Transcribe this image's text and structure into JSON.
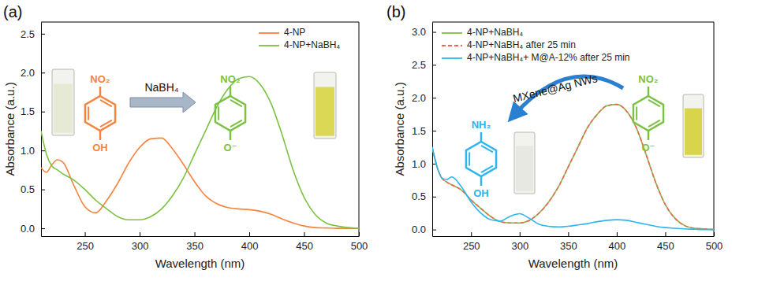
{
  "chart_data": [
    {
      "type": "line",
      "title": "(a)",
      "x_label": "Wavelength (nm)",
      "y_label": "Absorbance (a.u.)",
      "x": [
        210,
        215,
        220,
        225,
        230,
        240,
        250,
        260,
        270,
        280,
        290,
        300,
        310,
        320,
        330,
        340,
        350,
        360,
        370,
        380,
        390,
        400,
        410,
        420,
        430,
        440,
        450,
        460,
        470,
        480,
        490,
        500
      ],
      "xlim": [
        210,
        500
      ],
      "xticks": [
        250,
        300,
        350,
        400,
        450,
        500
      ],
      "ylim": [
        -0.1,
        2.65
      ],
      "yticks": [
        {
          "value": 0,
          "label": "0.0"
        },
        0.5,
        {
          "value": 1,
          "label": "1.0"
        },
        1.5,
        {
          "value": 2,
          "label": "2.0"
        },
        2.5
      ],
      "legend": "upper right",
      "series": [
        {
          "name": "4-NP",
          "color": "#f5843f",
          "line_style": "solid",
          "values": [
            0.78,
            0.72,
            0.82,
            0.88,
            0.85,
            0.55,
            0.28,
            0.2,
            0.36,
            0.58,
            0.84,
            1.04,
            1.15,
            1.16,
            1.02,
            0.82,
            0.6,
            0.42,
            0.32,
            0.27,
            0.25,
            0.24,
            0.22,
            0.18,
            0.12,
            0.07,
            0.03,
            0.01,
            0.005,
            0,
            0,
            0
          ]
        },
        {
          "name": "4-NP+NaBH₄",
          "color": "#7cc242",
          "line_style": "solid",
          "values": [
            1.25,
            0.95,
            0.8,
            0.75,
            0.7,
            0.62,
            0.5,
            0.36,
            0.25,
            0.15,
            0.11,
            0.11,
            0.15,
            0.25,
            0.42,
            0.65,
            0.95,
            1.25,
            1.55,
            1.78,
            1.92,
            1.95,
            1.85,
            1.6,
            1.2,
            0.75,
            0.4,
            0.18,
            0.07,
            0.03,
            0.01,
            0
          ]
        }
      ],
      "annotations": [
        {
          "text": "NO₂"
        },
        {
          "text": "OH"
        },
        {
          "text": "NaBH₄"
        },
        {
          "text": "NO₂"
        },
        {
          "text": "O⁻"
        }
      ]
    },
    {
      "type": "line",
      "title": "(b)",
      "x_label": "Wavelength (nm)",
      "y_label": "Absorbance (a.u.)",
      "x": [
        210,
        215,
        220,
        225,
        230,
        240,
        250,
        260,
        270,
        280,
        290,
        300,
        310,
        320,
        330,
        340,
        350,
        360,
        370,
        380,
        390,
        400,
        410,
        420,
        430,
        440,
        450,
        460,
        470,
        480,
        490,
        500
      ],
      "xlim": [
        210,
        500
      ],
      "xticks": [
        250,
        300,
        350,
        400,
        450,
        500
      ],
      "ylim": [
        -0.1,
        3.15
      ],
      "yticks": [
        {
          "value": 0,
          "label": "0.0"
        },
        0.5,
        {
          "value": 1,
          "label": "1.0"
        },
        1.5,
        {
          "value": 2,
          "label": "2.0"
        },
        2.5,
        {
          "value": 3,
          "label": "3.0"
        }
      ],
      "legend": "upper left",
      "series": [
        {
          "name": "4-NP+NaBH₄",
          "color": "#7cc242",
          "line_style": "solid",
          "values": [
            1.25,
            0.95,
            0.78,
            0.72,
            0.68,
            0.6,
            0.45,
            0.32,
            0.2,
            0.12,
            0.1,
            0.1,
            0.14,
            0.25,
            0.42,
            0.65,
            0.95,
            1.25,
            1.55,
            1.75,
            1.88,
            1.9,
            1.8,
            1.55,
            1.15,
            0.72,
            0.38,
            0.17,
            0.06,
            0.02,
            0.01,
            0
          ]
        },
        {
          "name": "4-NP+NaBH₄ after 25 min",
          "color": "#f0645a",
          "line_style": "dashed",
          "values": [
            1.25,
            0.95,
            0.78,
            0.72,
            0.68,
            0.6,
            0.45,
            0.32,
            0.2,
            0.12,
            0.1,
            0.1,
            0.14,
            0.25,
            0.42,
            0.65,
            0.95,
            1.25,
            1.55,
            1.75,
            1.88,
            1.9,
            1.8,
            1.55,
            1.15,
            0.72,
            0.38,
            0.17,
            0.06,
            0.02,
            0.01,
            0
          ]
        },
        {
          "name": "4-NP+NaBH₄+ M@A-12% after 25 min",
          "color": "#2cb5f0",
          "line_style": "solid",
          "values": [
            1.25,
            0.95,
            0.78,
            0.76,
            0.8,
            0.65,
            0.42,
            0.25,
            0.15,
            0.13,
            0.2,
            0.24,
            0.17,
            0.08,
            0.05,
            0.04,
            0.05,
            0.07,
            0.09,
            0.12,
            0.14,
            0.15,
            0.14,
            0.11,
            0.08,
            0.05,
            0.03,
            0.02,
            0.01,
            0.005,
            0,
            0
          ]
        }
      ],
      "annotations": [
        {
          "text": "NH₂"
        },
        {
          "text": "OH"
        },
        {
          "text": "MXene@Ag NWs"
        },
        {
          "text": "NO₂"
        },
        {
          "text": "O⁻"
        }
      ]
    }
  ]
}
